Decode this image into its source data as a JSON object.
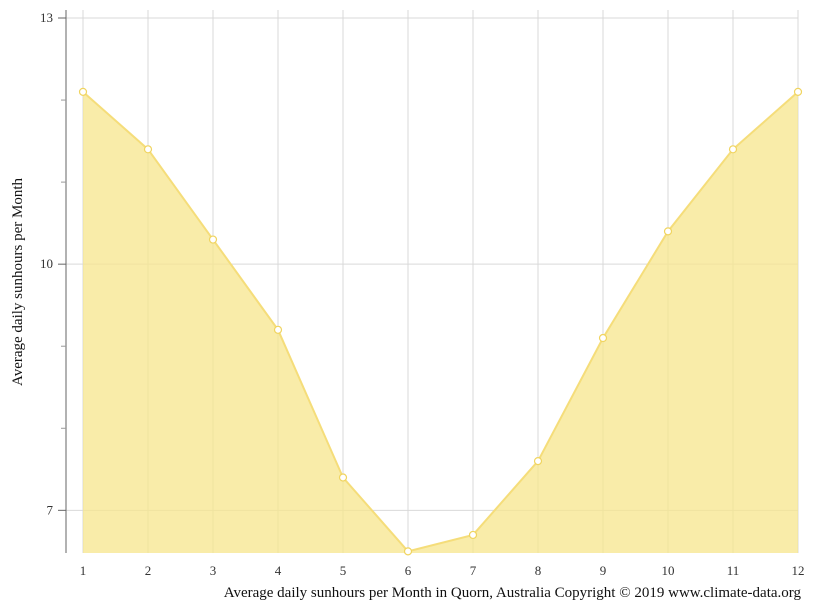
{
  "chart_data": {
    "type": "area",
    "x": [
      1,
      2,
      3,
      4,
      5,
      6,
      7,
      8,
      9,
      10,
      11,
      12
    ],
    "values": [
      12.1,
      11.4,
      10.3,
      9.2,
      7.4,
      6.5,
      6.7,
      7.6,
      9.1,
      10.4,
      11.4,
      12.1
    ],
    "xlabel": "",
    "ylabel": "Average daily sunhours per Month",
    "caption": "Average daily sunhours per Month in Quorn, Australia Copyright © 2019 www.climate-data.org",
    "ylim": [
      6.48,
      13
    ],
    "yticks": [
      7,
      10,
      13
    ],
    "xticks": [
      1,
      2,
      3,
      4,
      5,
      6,
      7,
      8,
      9,
      10,
      11,
      12
    ],
    "grid": true,
    "colors": {
      "fill": "#f7e58c",
      "line": "#f5dd7a",
      "marker_fill": "#ffffff",
      "marker_stroke": "#f0d45f",
      "grid": "#d9d9d9",
      "axis": "#666666"
    }
  }
}
